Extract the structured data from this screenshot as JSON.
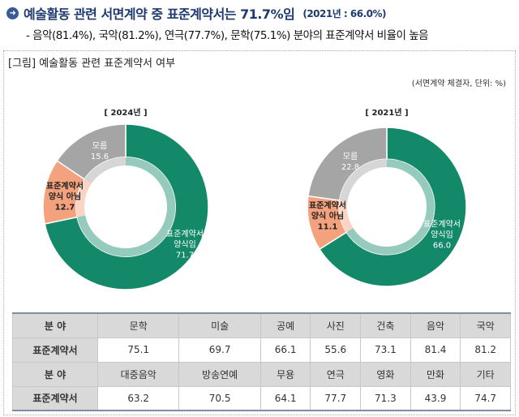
{
  "header": {
    "title": "예술활동 관련 서면계약 중 표준계약서는 71.7%임",
    "title_note": "(2021년 : 66.0%)",
    "subline": "- 음악(81.4%), 국악(81.2%), 연극(77.7%), 문학(75.1%) 분야의 표준계약서 비율이 높음"
  },
  "figure": {
    "title": "[그림] 예술활동 관련 표준계약서 여부",
    "unit": "(서면계약 체결자, 단위: %)"
  },
  "colors": {
    "standard": "#14896a",
    "not_standard": "#f4a27e",
    "unknown": "#a5a5a5"
  },
  "chart_data": [
    {
      "type": "pie",
      "title": "[ 2024년 ]",
      "slices": [
        {
          "label": "표준계약서 양식임",
          "value": 71.7
        },
        {
          "label": "표준계약서 양식 아님",
          "value": 12.7
        },
        {
          "label": "모름",
          "value": 15.6
        }
      ]
    },
    {
      "type": "pie",
      "title": "[ 2021년 ]",
      "slices": [
        {
          "label": "표준계약서 양식임",
          "value": 66.0
        },
        {
          "label": "표준계약서 양식 아님",
          "value": 11.1
        },
        {
          "label": "모름",
          "value": 22.8
        }
      ]
    }
  ],
  "labels": {
    "std_l1": "표준계약서",
    "std_l2": "양식임",
    "not_l1": "표준계약서",
    "not_l2": "양식 아님",
    "unk": "모름"
  },
  "table": {
    "row_header_field": "분 야",
    "row_header_value": "표준계약서",
    "fields1": [
      "문학",
      "미술",
      "공예",
      "사진",
      "건축",
      "음악",
      "국악"
    ],
    "values1": [
      "75.1",
      "69.7",
      "66.1",
      "55.6",
      "73.1",
      "81.4",
      "81.2"
    ],
    "fields2": [
      "대중음악",
      "방송연예",
      "무용",
      "연극",
      "영화",
      "만화",
      "기타"
    ],
    "values2": [
      "63.2",
      "70.5",
      "64.1",
      "77.7",
      "71.3",
      "43.9",
      "74.7"
    ]
  }
}
